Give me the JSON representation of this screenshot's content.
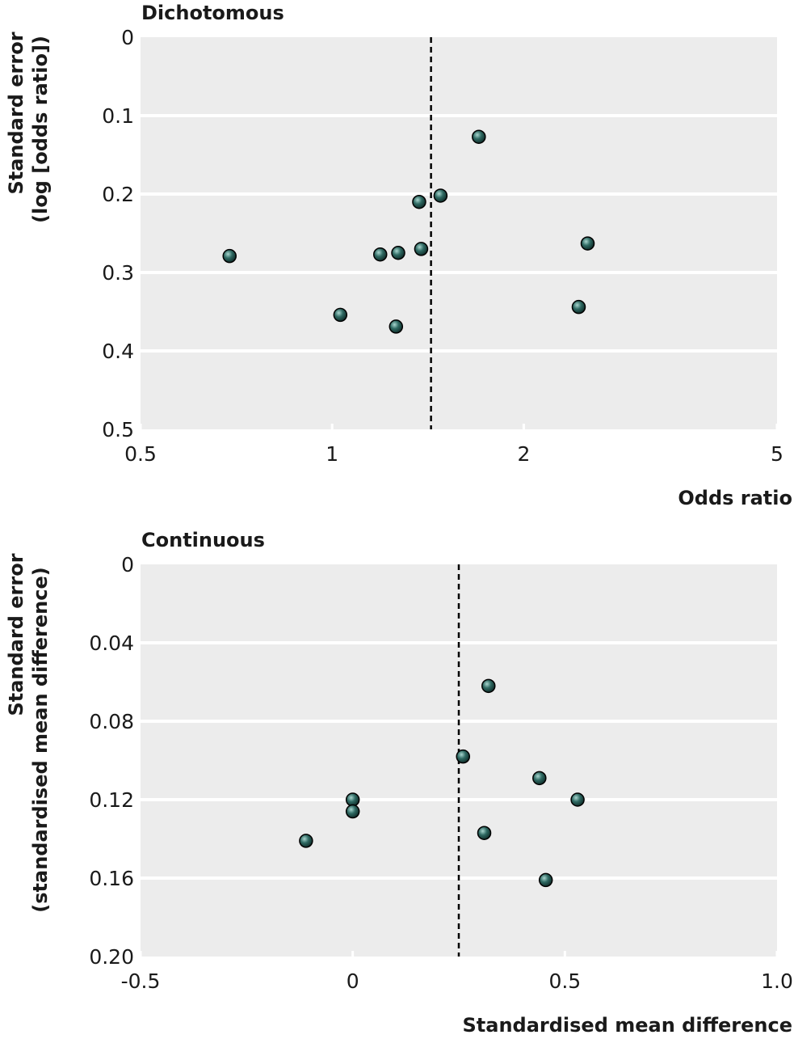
{
  "colors": {
    "panel_bg": "#ececec",
    "gridline": "#ffffff",
    "point_fill": "#1f4f4a",
    "point_stroke": "#000000",
    "ref_line": "#000000",
    "text": "#1a1a1a"
  },
  "chart_data": [
    {
      "type": "scatter",
      "title": "Dichotomous",
      "xlabel": "Odds ratio",
      "ylabel_lines": [
        "Standard error",
        "(log [odds ratio])"
      ],
      "x_scale": "log",
      "xlim": [
        0.5,
        5
      ],
      "ylim": [
        0,
        0.5
      ],
      "y_inverted": true,
      "grid": true,
      "x_ticks": [
        0.5,
        1,
        2,
        5
      ],
      "x_tick_labels": [
        "0.5",
        "1",
        "2",
        "5"
      ],
      "y_ticks": [
        0,
        0.1,
        0.2,
        0.3,
        0.4,
        0.5
      ],
      "y_tick_labels": [
        "0",
        "0.1",
        "0.2",
        "0.3",
        "0.4",
        "0.5"
      ],
      "reference_line_x": 1.43,
      "points": [
        {
          "x": 1.7,
          "y": 0.127
        },
        {
          "x": 1.48,
          "y": 0.202
        },
        {
          "x": 1.37,
          "y": 0.21
        },
        {
          "x": 2.52,
          "y": 0.263
        },
        {
          "x": 1.38,
          "y": 0.27
        },
        {
          "x": 1.27,
          "y": 0.275
        },
        {
          "x": 1.19,
          "y": 0.277
        },
        {
          "x": 0.69,
          "y": 0.279
        },
        {
          "x": 2.44,
          "y": 0.344
        },
        {
          "x": 1.03,
          "y": 0.354
        },
        {
          "x": 1.26,
          "y": 0.369
        }
      ]
    },
    {
      "type": "scatter",
      "title": "Continuous",
      "xlabel": "Standardised mean difference",
      "ylabel_lines": [
        "Standard error",
        "(standardised mean difference)"
      ],
      "x_scale": "linear",
      "xlim": [
        -0.5,
        1.0
      ],
      "ylim": [
        0,
        0.2
      ],
      "y_inverted": true,
      "grid": true,
      "x_ticks": [
        -0.5,
        0,
        0.5,
        1.0
      ],
      "x_tick_labels": [
        "-0.5",
        "0",
        "0.5",
        "1.0"
      ],
      "y_ticks": [
        0,
        0.04,
        0.08,
        0.12,
        0.16,
        0.2
      ],
      "y_tick_labels": [
        "0",
        "0.04",
        "0.08",
        "0.12",
        "0.16",
        "0.20"
      ],
      "reference_line_x": 0.25,
      "points": [
        {
          "x": 0.32,
          "y": 0.062
        },
        {
          "x": 0.26,
          "y": 0.098
        },
        {
          "x": 0.44,
          "y": 0.109
        },
        {
          "x": 0.53,
          "y": 0.12
        },
        {
          "x": 0.0,
          "y": 0.12
        },
        {
          "x": 0.0,
          "y": 0.126
        },
        {
          "x": 0.31,
          "y": 0.137
        },
        {
          "x": -0.11,
          "y": 0.141
        },
        {
          "x": 0.455,
          "y": 0.161
        }
      ]
    }
  ]
}
